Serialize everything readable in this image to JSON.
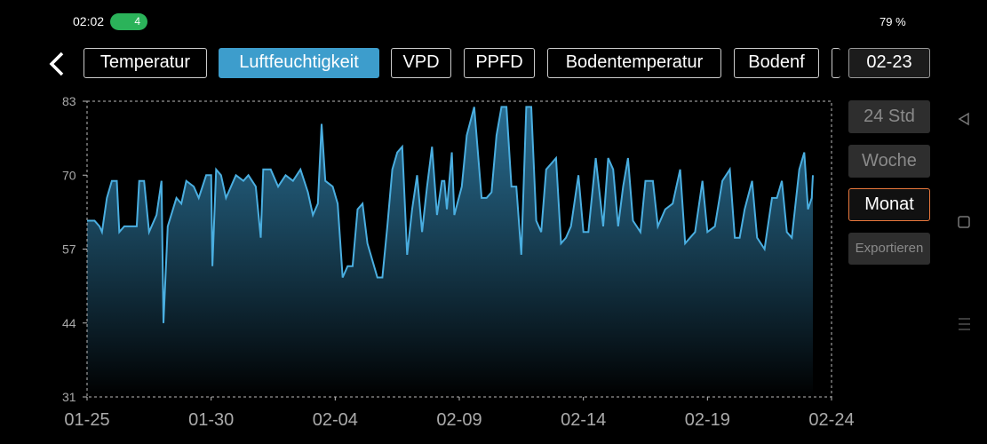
{
  "status_bar": {
    "time": "02:02",
    "badge": "4",
    "battery": "79 %"
  },
  "tabs": [
    "Temperatur",
    "Luftfeuchtigkeit",
    "VPD",
    "PPFD",
    "Bodentemperatur",
    "Bodenf"
  ],
  "active_tab": "Luftfeuchtigkeit",
  "date_button": "02-23",
  "ranges": [
    "24 Std",
    "Woche",
    "Monat"
  ],
  "active_range": "Monat",
  "export": "Exportieren",
  "chart_data": {
    "type": "area",
    "color": "#4aaee0",
    "x": [
      0,
      0.3,
      0.5,
      0.6,
      0.8,
      1.0,
      1.2,
      1.3,
      1.5,
      2.0,
      2.1,
      2.3,
      2.5,
      2.8,
      3.0,
      3.08,
      3.25,
      3.6,
      3.8,
      4.0,
      4.3,
      4.5,
      4.8,
      5.0,
      5.05,
      5.2,
      5.4,
      5.6,
      5.8,
      6.0,
      6.3,
      6.5,
      6.8,
      7.0,
      7.1,
      7.4,
      7.7,
      8.0,
      8.3,
      8.6,
      8.9,
      9.1,
      9.3,
      9.45,
      9.6,
      9.9,
      10.1,
      10.3,
      10.5,
      10.7,
      10.9,
      11.1,
      11.3,
      11.5,
      11.7,
      11.9,
      12.1,
      12.3,
      12.5,
      12.7,
      12.9,
      13.1,
      13.3,
      13.5,
      13.7,
      13.9,
      14.1,
      14.3,
      14.4,
      14.5,
      14.7,
      14.8,
      15.1,
      15.3,
      15.6,
      15.9,
      16.1,
      16.3,
      16.5,
      16.7,
      16.9,
      17.1,
      17.3,
      17.5,
      17.7,
      17.9,
      18.1,
      18.3,
      18.5,
      18.7,
      18.9,
      19.1,
      19.3,
      19.5,
      19.8,
      20.0,
      20.2,
      20.5,
      20.8,
      21.0,
      21.2,
      21.4,
      21.6,
      21.8,
      22.0,
      22.3,
      22.5,
      22.8,
      23.0,
      23.3,
      23.6,
      23.9,
      24.1,
      24.3,
      24.5,
      24.8,
      25.0,
      25.3,
      25.6,
      25.9,
      26.1,
      26.3,
      26.5,
      26.8,
      27.0,
      27.3,
      27.6,
      27.8,
      28.0,
      28.2,
      28.4,
      28.7,
      28.9,
      29.05,
      29.2,
      29.25
    ],
    "values": [
      62,
      62,
      61,
      60,
      66,
      69,
      69,
      60,
      61,
      61,
      69,
      69,
      60,
      63,
      69,
      44,
      61,
      66,
      65,
      69,
      68,
      66,
      70,
      70,
      54,
      71,
      70,
      66,
      68,
      70,
      69,
      70,
      68,
      59,
      71,
      71,
      68,
      70,
      69,
      71,
      67,
      63,
      65,
      79,
      69,
      68,
      65,
      52,
      54,
      54,
      64,
      65,
      58,
      55,
      52,
      52,
      61,
      71,
      74,
      75,
      56,
      64,
      70,
      60,
      68,
      75,
      63,
      69,
      69,
      64,
      74,
      63,
      68,
      77,
      82,
      66,
      66,
      67,
      77,
      82,
      82,
      68,
      68,
      56,
      82,
      82,
      62,
      60,
      71,
      72,
      73,
      58,
      59,
      61,
      70,
      60,
      60,
      73,
      61,
      73,
      71,
      61,
      68,
      73,
      62,
      60,
      69,
      69,
      61,
      64,
      65,
      71,
      58,
      59,
      60,
      69,
      60,
      61,
      69,
      71,
      59,
      59,
      64,
      69,
      59,
      57,
      66,
      66,
      69,
      60,
      59,
      71,
      74,
      64,
      66,
      70
    ],
    "xlim": [
      0,
      30
    ],
    "xticks": [
      {
        "value": 0,
        "label": "01-25"
      },
      {
        "value": 5,
        "label": "01-30"
      },
      {
        "value": 10,
        "label": "02-04"
      },
      {
        "value": 15,
        "label": "02-09"
      },
      {
        "value": 20,
        "label": "02-14"
      },
      {
        "value": 25,
        "label": "02-19"
      },
      {
        "value": 30,
        "label": "02-24"
      }
    ],
    "ylim": [
      31,
      83
    ],
    "yticks": [
      31,
      44,
      57,
      70,
      83
    ]
  }
}
